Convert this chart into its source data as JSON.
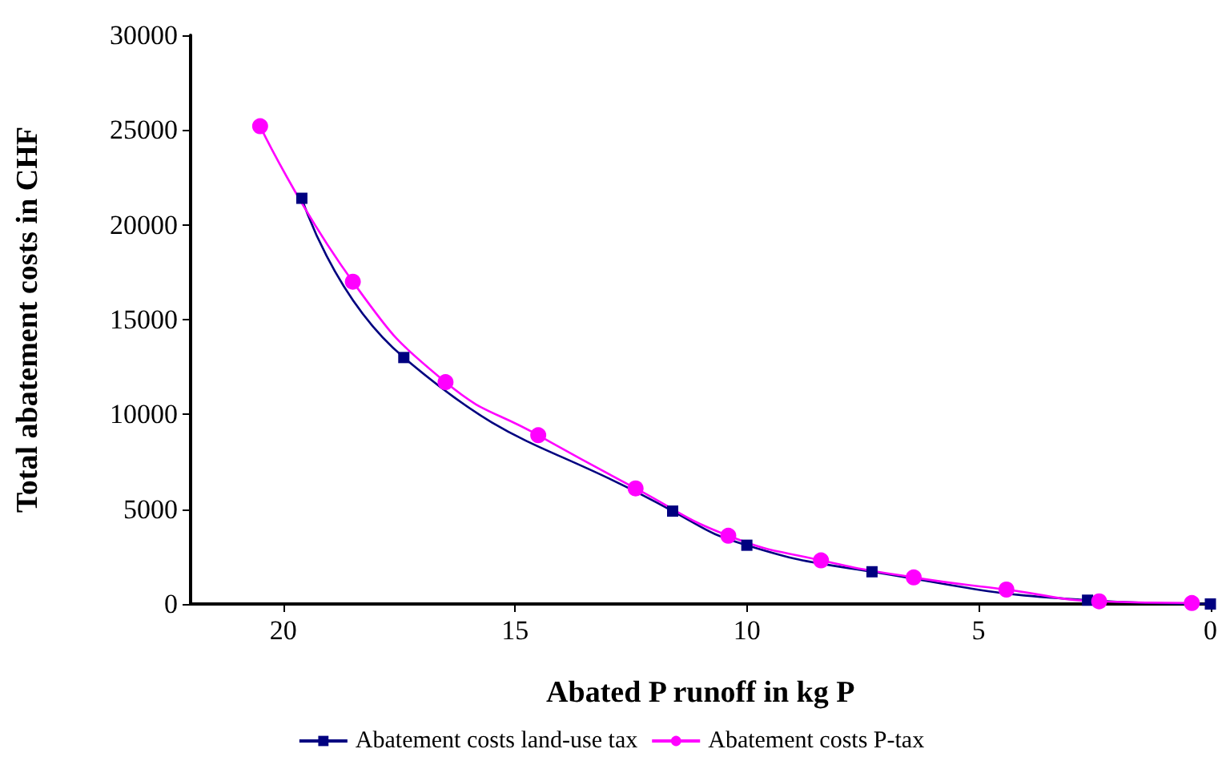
{
  "chart_data": {
    "type": "line",
    "xlabel": "Abated P runoff in kg P",
    "ylabel": "Total abatement costs in CHF",
    "xlim": [
      22,
      0
    ],
    "xticks": [
      20,
      15,
      10,
      5,
      0
    ],
    "ylim": [
      0,
      30000
    ],
    "yticks": [
      0,
      5000,
      10000,
      15000,
      20000,
      25000,
      30000
    ],
    "grid": false,
    "legend": "bottom",
    "series": [
      {
        "name": "Abatement costs land-use tax",
        "color": "#000080",
        "marker": "square",
        "x": [
          19.6,
          17.4,
          11.6,
          10,
          7.3,
          2.65,
          0
        ],
        "values": [
          21400,
          13000,
          4900,
          3100,
          1700,
          200,
          0
        ]
      },
      {
        "name": "Abatement costs P-tax",
        "color": "#ff00ff",
        "marker": "circle",
        "x": [
          20.5,
          18.5,
          16.5,
          14.5,
          12.4,
          10.4,
          8.4,
          6.4,
          4.4,
          2.4,
          0.4
        ],
        "values": [
          25200,
          17000,
          11700,
          8900,
          6100,
          3600,
          2300,
          1400,
          760,
          140,
          50
        ]
      }
    ]
  }
}
